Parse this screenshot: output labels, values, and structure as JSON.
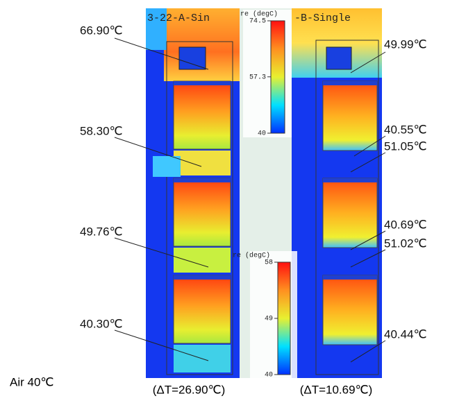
{
  "panels": [
    {
      "title": "3-22-A-Sin"
    },
    {
      "title": "-B-Single"
    }
  ],
  "colorbars": [
    {
      "title": "re (degC)",
      "lim": [
        40,
        74.5
      ],
      "ticks": [
        40,
        57.3,
        74.5
      ]
    },
    {
      "title": "re (degC)",
      "lim": [
        40,
        58
      ],
      "ticks": [
        40,
        49,
        58
      ]
    }
  ],
  "annotations": [
    "66.90℃",
    "58.30℃",
    "49.76℃",
    "40.30℃",
    "49.99℃",
    "40.55℃",
    "51.05℃",
    "40.69℃",
    "51.02℃",
    "40.44℃"
  ],
  "footer": {
    "air": "Air 40℃",
    "delta": [
      "(ΔT=26.90℃)",
      "(ΔT=10.69℃)"
    ]
  }
}
